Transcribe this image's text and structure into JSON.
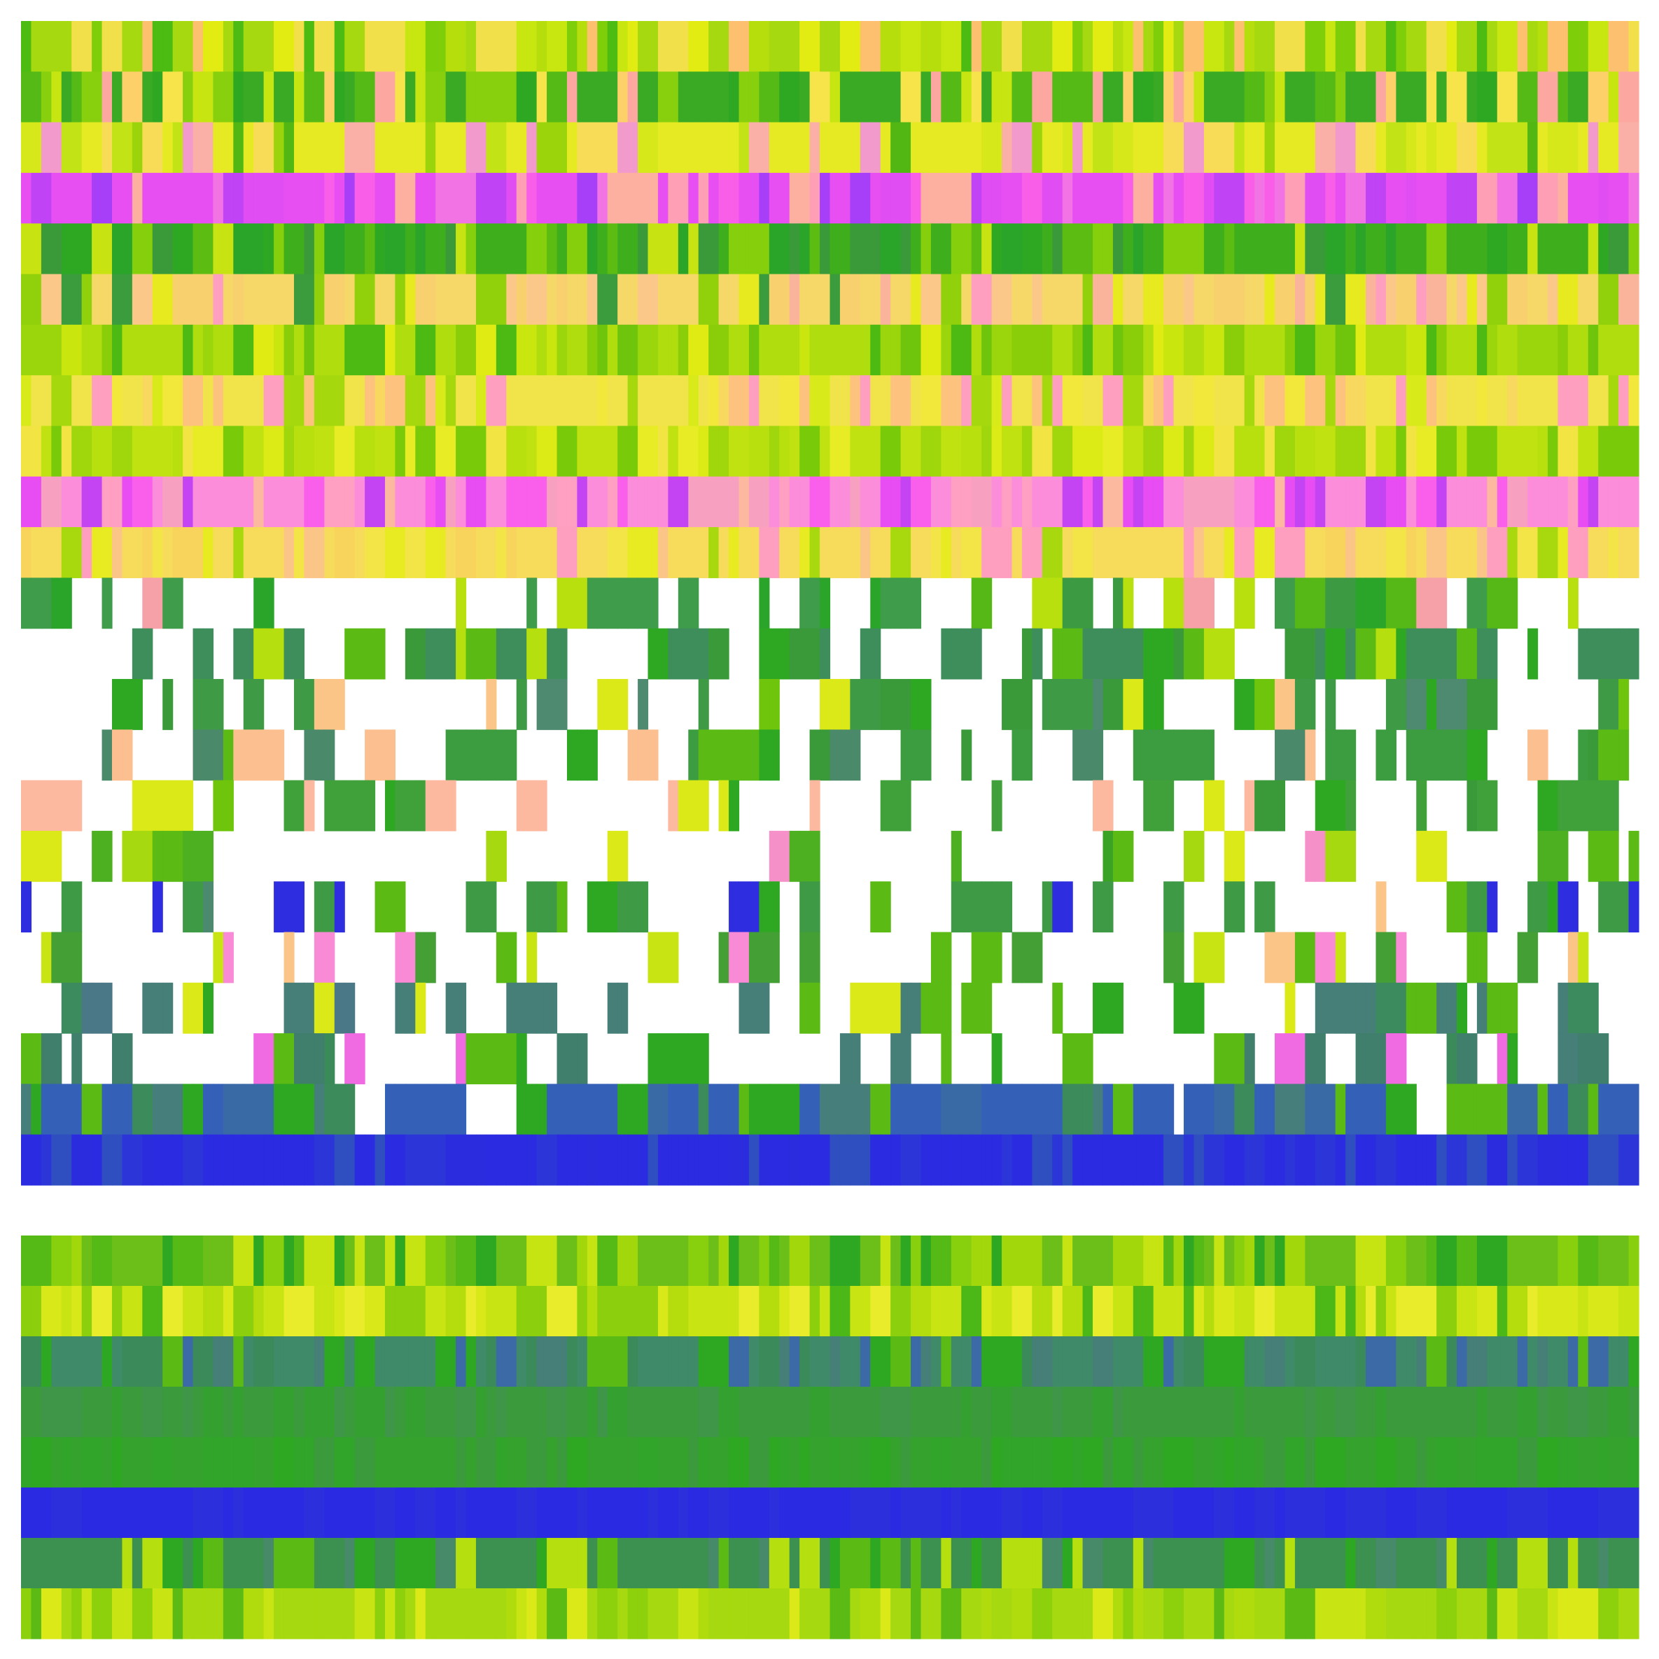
{
  "chart_data": [
    {
      "type": "heatmap",
      "panel": "top",
      "n_rows": 23,
      "n_cols": 160,
      "rows": [
        {
          "index": 0,
          "base_color": "#a6d90f",
          "palette": [
            "#c8e60f",
            "#e3ec12",
            "#7fce0a",
            "#4cbb12",
            "#f2e04a",
            "#b5de0c",
            "#fcc06e"
          ],
          "empty_fraction": 0.0
        },
        {
          "index": 1,
          "base_color": "#3aaa25",
          "palette": [
            "#2ea822",
            "#55b916",
            "#88cf0e",
            "#f7e44b",
            "#fdd06a",
            "#c6e511",
            "#fca8a0"
          ],
          "empty_fraction": 0.0
        },
        {
          "index": 2,
          "base_color": "#e6ea22",
          "palette": [
            "#fab0a6",
            "#f29acb",
            "#d7e81a",
            "#f8dc58",
            "#9cd40c",
            "#52b712",
            "#c2e316"
          ],
          "empty_fraction": 0.0
        },
        {
          "index": 3,
          "base_color": "#e84ff2",
          "palette": [
            "#c043f5",
            "#f274e4",
            "#ff9fb5",
            "#a63ff7",
            "#fdb0a0",
            "#e04df2",
            "#f95ee9"
          ],
          "empty_fraction": 0.0
        },
        {
          "index": 4,
          "base_color": "#3fae1c",
          "palette": [
            "#2ea822",
            "#5dbc12",
            "#86cf0c",
            "#c7e412",
            "#3a9a3a",
            "#2aa52a"
          ],
          "empty_fraction": 0.0
        },
        {
          "index": 5,
          "base_color": "#f5d867",
          "palette": [
            "#fcc88a",
            "#f8d06e",
            "#e7ea1e",
            "#ff9fc0",
            "#91d10c",
            "#3a9c3c",
            "#fbb49c"
          ],
          "empty_fraction": 0.0
        },
        {
          "index": 6,
          "base_color": "#b0dd0e",
          "palette": [
            "#c9e60f",
            "#9bd50c",
            "#6ec50c",
            "#4cba12",
            "#e0eb14",
            "#8ace0a"
          ],
          "empty_fraction": 0.0
        },
        {
          "index": 7,
          "base_color": "#f0e44a",
          "palette": [
            "#f8d85e",
            "#ff9fbf",
            "#d8ea1a",
            "#a5d90d",
            "#fcc27e",
            "#f2e83c"
          ],
          "empty_fraction": 0.0
        },
        {
          "index": 8,
          "base_color": "#c0e210",
          "palette": [
            "#dceb16",
            "#9fd60c",
            "#e8ec24",
            "#79cb0a",
            "#b8e00e",
            "#f2e442"
          ],
          "empty_fraction": 0.0
        },
        {
          "index": 9,
          "base_color": "#fb8ddb",
          "palette": [
            "#f95fea",
            "#ff9fc1",
            "#e74df2",
            "#fdb8a0",
            "#c444f4",
            "#f8a0c0"
          ],
          "empty_fraction": 0.0
        },
        {
          "index": 10,
          "base_color": "#f6dc5a",
          "palette": [
            "#fcc588",
            "#e8ea22",
            "#ff9fc0",
            "#f8d45c",
            "#a8d90e",
            "#f3e448"
          ],
          "empty_fraction": 0.0
        },
        {
          "index": 11,
          "base_color": "#3e9c4a",
          "palette": [
            "#3c9a42",
            "#56b816",
            "#b8e00e",
            "#2aa52a",
            "#f6a0a8"
          ],
          "empty_fraction": 0.55
        },
        {
          "index": 12,
          "base_color": "#3e8e5c",
          "palette": [
            "#3e8e5c",
            "#3a9a3a",
            "#5bbb14",
            "#2ea822",
            "#b5df0e"
          ],
          "empty_fraction": 0.3
        },
        {
          "index": 13,
          "base_color": "#3e9a44",
          "palette": [
            "#3a9a3a",
            "#4e8a70",
            "#6ec50c",
            "#dbe918",
            "#fcc588",
            "#2ea822"
          ],
          "empty_fraction": 0.5
        },
        {
          "index": 14,
          "base_color": "#3c9c40",
          "palette": [
            "#3a9a3a",
            "#2ea822",
            "#5bbb14",
            "#fcbf90",
            "#4a8a6a"
          ],
          "empty_fraction": 0.45
        },
        {
          "index": 15,
          "base_color": "#40a03a",
          "palette": [
            "#3a9a3a",
            "#2ea822",
            "#6ec50c",
            "#fdb8a0",
            "#dbe918"
          ],
          "empty_fraction": 0.55
        },
        {
          "index": 16,
          "base_color": "#4cb020",
          "palette": [
            "#3aa326",
            "#5bbb14",
            "#a6d90f",
            "#f690c8",
            "#dbe918"
          ],
          "empty_fraction": 0.72
        },
        {
          "index": 17,
          "base_color": "#3f9a46",
          "palette": [
            "#3f9a46",
            "#2ea822",
            "#5bbb14",
            "#2e2ee0",
            "#fcc588",
            "#4c8a70"
          ],
          "empty_fraction": 0.55
        },
        {
          "index": 18,
          "base_color": "#44a034",
          "palette": [
            "#3a9a3a",
            "#5bbb14",
            "#f98ad6",
            "#fcc588",
            "#c8e412"
          ],
          "empty_fraction": 0.7
        },
        {
          "index": 19,
          "base_color": "#457f78",
          "palette": [
            "#457f78",
            "#3c8b5e",
            "#4a7886",
            "#2ea822",
            "#5bbb14",
            "#dbe918"
          ],
          "empty_fraction": 0.5
        },
        {
          "index": 20,
          "base_color": "#3f7f6c",
          "palette": [
            "#457f78",
            "#3a8a5a",
            "#2ea822",
            "#5bbb14",
            "#f06ae2"
          ],
          "empty_fraction": 0.58
        },
        {
          "index": 21,
          "base_color": "#3560b8",
          "palette": [
            "#3560b8",
            "#3a6aa6",
            "#467e7c",
            "#3c8b5a",
            "#2ea822",
            "#5bbb14"
          ],
          "empty_fraction": 0.08
        },
        {
          "index": 22,
          "base_color": "#2b2be2",
          "palette": [
            "#2b2be2",
            "#2c36d8",
            "#2f4fc0",
            "#2c2cdf"
          ],
          "empty_fraction": 0.0
        }
      ]
    },
    {
      "type": "heatmap",
      "panel": "bottom",
      "n_rows": 8,
      "n_cols": 160,
      "rows": [
        {
          "index": 0,
          "base_color": "#6cbf18",
          "palette": [
            "#2ea822",
            "#55b916",
            "#88cf0e",
            "#c5e412",
            "#a2d70c"
          ],
          "empty_fraction": 0.0
        },
        {
          "index": 1,
          "base_color": "#c8e412",
          "palette": [
            "#d8e818",
            "#b5dd0e",
            "#e8ec2a",
            "#8ccf0c",
            "#4cb818"
          ],
          "empty_fraction": 0.0
        },
        {
          "index": 2,
          "base_color": "#3f8a68",
          "palette": [
            "#457f78",
            "#3a8a5a",
            "#3c6aa6",
            "#2ea822",
            "#5bbb14"
          ],
          "empty_fraction": 0.0
        },
        {
          "index": 3,
          "base_color": "#3a9a3c",
          "palette": [
            "#3a9a3c",
            "#34a030",
            "#3f9648"
          ],
          "empty_fraction": 0.0
        },
        {
          "index": 4,
          "base_color": "#34a22c",
          "palette": [
            "#30a52a",
            "#3a9a3c",
            "#2ea822"
          ],
          "empty_fraction": 0.0
        },
        {
          "index": 5,
          "base_color": "#2a2ae2",
          "palette": [
            "#2a2ae2",
            "#2c30dc"
          ],
          "empty_fraction": 0.0
        },
        {
          "index": 6,
          "base_color": "#3c9050",
          "palette": [
            "#3c9050",
            "#2ea822",
            "#468a6a",
            "#5bbb14",
            "#b5df0e"
          ],
          "empty_fraction": 0.0
        },
        {
          "index": 7,
          "base_color": "#a6d90f",
          "palette": [
            "#c8e412",
            "#8dd00c",
            "#5bbb14",
            "#dbe918",
            "#b0dc0e"
          ],
          "empty_fraction": 0.0
        }
      ]
    }
  ]
}
